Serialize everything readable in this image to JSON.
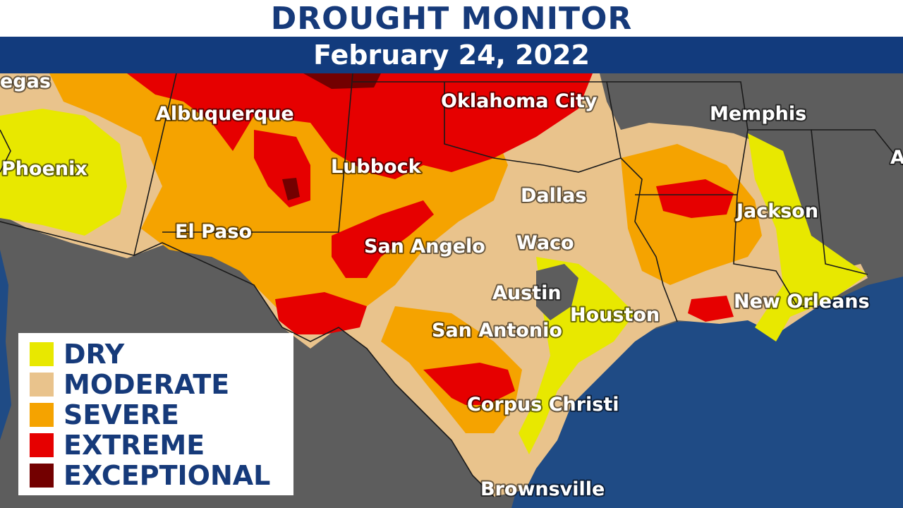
{
  "header": {
    "title": "DROUGHT MONITOR",
    "date": "February 24, 2022"
  },
  "legend": [
    {
      "label": "DRY",
      "color": "#e8e800"
    },
    {
      "label": "MODERATE",
      "color": "#e9c38c"
    },
    {
      "label": "SEVERE",
      "color": "#f5a300"
    },
    {
      "label": "EXTREME",
      "color": "#e60000"
    },
    {
      "label": "EXCEPTIONAL",
      "color": "#730000"
    }
  ],
  "cities": [
    {
      "name": "egas"
    },
    {
      "name": "Albuquerque"
    },
    {
      "name": "Oklahoma City"
    },
    {
      "name": "Memphis"
    },
    {
      "name": "Phoenix"
    },
    {
      "name": "Lubbock"
    },
    {
      "name": "Dallas"
    },
    {
      "name": "Jackson"
    },
    {
      "name": "El Paso"
    },
    {
      "name": "San Angelo"
    },
    {
      "name": "Waco"
    },
    {
      "name": "Austin"
    },
    {
      "name": "Houston"
    },
    {
      "name": "New Orleans"
    },
    {
      "name": "San Antonio"
    },
    {
      "name": "Corpus Christi"
    },
    {
      "name": "Brownsville"
    },
    {
      "name": "A"
    }
  ],
  "colors": {
    "land": "#5d5d5d",
    "water": "#1f4b85",
    "border": "#1a1a1a"
  }
}
